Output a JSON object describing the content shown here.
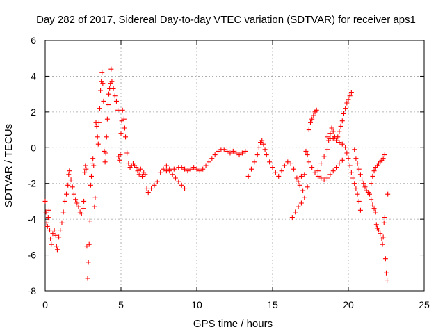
{
  "chart_data": {
    "type": "scatter",
    "title": "Day 282 of 2017, Sidereal Day-to-day VTEC variation (SDTVAR) for receiver aps1",
    "xlabel": "GPS time / hours",
    "ylabel": "SDTVAR / TECUs",
    "xlim": [
      0,
      25
    ],
    "ylim": [
      -8,
      6
    ],
    "xticks": [
      0,
      5,
      10,
      15,
      20,
      25
    ],
    "yticks": [
      -8,
      -6,
      -4,
      -2,
      0,
      2,
      4,
      6
    ],
    "grid": true,
    "marker": "+",
    "color": "#ff0000",
    "series": [
      {
        "name": "aps1",
        "points": [
          [
            0.0,
            -3.0
          ],
          [
            0.05,
            -3.6
          ],
          [
            0.1,
            -4.2
          ],
          [
            0.15,
            -4.4
          ],
          [
            0.2,
            -3.9
          ],
          [
            0.25,
            -3.5
          ],
          [
            0.3,
            -4.6
          ],
          [
            0.35,
            -5.1
          ],
          [
            0.4,
            -5.4
          ],
          [
            0.5,
            -4.8
          ],
          [
            0.6,
            -4.6
          ],
          [
            0.7,
            -4.9
          ],
          [
            0.75,
            -5.5
          ],
          [
            0.8,
            -5.7
          ],
          [
            0.9,
            -5.0
          ],
          [
            1.0,
            -4.6
          ],
          [
            1.1,
            -4.2
          ],
          [
            1.2,
            -3.6
          ],
          [
            1.3,
            -3.0
          ],
          [
            1.4,
            -2.6
          ],
          [
            1.5,
            -2.1
          ],
          [
            1.55,
            -1.5
          ],
          [
            1.6,
            -1.3
          ],
          [
            1.7,
            -1.8
          ],
          [
            1.8,
            -2.2
          ],
          [
            1.9,
            -2.6
          ],
          [
            2.0,
            -2.9
          ],
          [
            2.1,
            -3.1
          ],
          [
            2.2,
            -3.3
          ],
          [
            2.3,
            -3.6
          ],
          [
            2.4,
            -3.7
          ],
          [
            2.5,
            -3.4
          ],
          [
            2.55,
            -3.0
          ],
          [
            2.6,
            -1.4
          ],
          [
            2.65,
            -1.0
          ],
          [
            2.7,
            -1.2
          ],
          [
            2.75,
            -5.5
          ],
          [
            2.8,
            -7.3
          ],
          [
            2.85,
            -6.4
          ],
          [
            2.9,
            -5.4
          ],
          [
            2.95,
            -4.1
          ],
          [
            3.0,
            -2.1
          ],
          [
            3.05,
            -1.6
          ],
          [
            3.1,
            -0.9
          ],
          [
            3.15,
            -0.6
          ],
          [
            3.2,
            -1.0
          ],
          [
            3.25,
            -3.3
          ],
          [
            3.3,
            -2.8
          ],
          [
            3.35,
            1.4
          ],
          [
            3.4,
            1.2
          ],
          [
            3.45,
            0.6
          ],
          [
            3.5,
            0.2
          ],
          [
            3.55,
            1.4
          ],
          [
            3.6,
            2.2
          ],
          [
            3.65,
            3.2
          ],
          [
            3.7,
            3.7
          ],
          [
            3.75,
            4.2
          ],
          [
            3.8,
            3.6
          ],
          [
            3.85,
            2.6
          ],
          [
            3.9,
            -0.2
          ],
          [
            3.95,
            -0.8
          ],
          [
            4.0,
            -0.3
          ],
          [
            4.05,
            0.6
          ],
          [
            4.1,
            1.6
          ],
          [
            4.15,
            2.4
          ],
          [
            4.2,
            3.0
          ],
          [
            4.25,
            3.3
          ],
          [
            4.3,
            3.6
          ],
          [
            4.35,
            4.4
          ],
          [
            4.4,
            3.7
          ],
          [
            4.5,
            3.3
          ],
          [
            4.6,
            2.9
          ],
          [
            4.7,
            2.6
          ],
          [
            4.8,
            2.1
          ],
          [
            4.85,
            -0.5
          ],
          [
            4.9,
            -0.7
          ],
          [
            4.95,
            -0.4
          ],
          [
            5.0,
            0.8
          ],
          [
            5.05,
            1.5
          ],
          [
            5.1,
            2.1
          ],
          [
            5.2,
            1.6
          ],
          [
            5.25,
            1.1
          ],
          [
            5.3,
            0.6
          ],
          [
            5.4,
            -0.3
          ],
          [
            5.5,
            -0.9
          ],
          [
            5.6,
            -1.1
          ],
          [
            5.7,
            -1.0
          ],
          [
            5.8,
            -0.9
          ],
          [
            5.9,
            -1.0
          ],
          [
            6.0,
            -1.1
          ],
          [
            6.1,
            -1.3
          ],
          [
            6.2,
            -1.5
          ],
          [
            6.3,
            -1.2
          ],
          [
            6.4,
            -1.6
          ],
          [
            6.5,
            -1.4
          ],
          [
            6.6,
            -1.5
          ],
          [
            6.7,
            -2.3
          ],
          [
            6.8,
            -2.5
          ],
          [
            7.0,
            -2.3
          ],
          [
            7.2,
            -2.1
          ],
          [
            7.4,
            -1.9
          ],
          [
            7.6,
            -1.4
          ],
          [
            7.8,
            -1.2
          ],
          [
            8.0,
            -1.0
          ],
          [
            8.2,
            -1.2
          ],
          [
            8.4,
            -1.5
          ],
          [
            8.6,
            -1.7
          ],
          [
            8.8,
            -1.9
          ],
          [
            9.0,
            -2.1
          ],
          [
            9.2,
            -2.3
          ],
          [
            8.0,
            -1.3
          ],
          [
            8.2,
            -1.3
          ],
          [
            8.5,
            -1.2
          ],
          [
            8.8,
            -1.1
          ],
          [
            9.0,
            -1.1
          ],
          [
            9.2,
            -1.2
          ],
          [
            9.4,
            -1.3
          ],
          [
            9.6,
            -1.2
          ],
          [
            9.8,
            -1.1
          ],
          [
            10.0,
            -1.2
          ],
          [
            10.2,
            -1.3
          ],
          [
            10.4,
            -1.2
          ],
          [
            10.6,
            -1.0
          ],
          [
            10.8,
            -0.8
          ],
          [
            11.0,
            -0.6
          ],
          [
            11.2,
            -0.4
          ],
          [
            11.4,
            -0.2
          ],
          [
            11.6,
            -0.1
          ],
          [
            11.8,
            -0.1
          ],
          [
            12.0,
            -0.2
          ],
          [
            12.2,
            -0.3
          ],
          [
            12.4,
            -0.2
          ],
          [
            12.6,
            -0.3
          ],
          [
            12.8,
            -0.4
          ],
          [
            13.0,
            -0.3
          ],
          [
            13.2,
            -0.2
          ],
          [
            13.4,
            -1.6
          ],
          [
            13.6,
            -1.2
          ],
          [
            13.8,
            -0.8
          ],
          [
            14.0,
            -0.4
          ],
          [
            14.1,
            0.0
          ],
          [
            14.2,
            0.3
          ],
          [
            14.3,
            0.4
          ],
          [
            14.4,
            0.2
          ],
          [
            14.5,
            -0.1
          ],
          [
            14.6,
            -0.4
          ],
          [
            14.8,
            -0.8
          ],
          [
            15.0,
            -1.1
          ],
          [
            15.2,
            -1.4
          ],
          [
            15.4,
            -1.6
          ],
          [
            15.6,
            -1.3
          ],
          [
            15.8,
            -1.0
          ],
          [
            16.0,
            -0.8
          ],
          [
            16.2,
            -0.9
          ],
          [
            16.4,
            -1.2
          ],
          [
            16.6,
            -1.7
          ],
          [
            16.8,
            -2.1
          ],
          [
            17.0,
            -2.4
          ],
          [
            16.7,
            -1.9
          ],
          [
            16.9,
            -1.6
          ],
          [
            17.1,
            -1.5
          ],
          [
            17.2,
            -0.2
          ],
          [
            17.3,
            -0.4
          ],
          [
            17.4,
            -0.8
          ],
          [
            17.6,
            -1.1
          ],
          [
            17.8,
            -1.4
          ],
          [
            18.0,
            -1.6
          ],
          [
            18.2,
            -1.7
          ],
          [
            18.4,
            -1.8
          ],
          [
            18.6,
            -1.7
          ],
          [
            18.8,
            -1.5
          ],
          [
            19.0,
            -1.3
          ],
          [
            19.2,
            -1.1
          ],
          [
            19.4,
            -0.9
          ],
          [
            19.6,
            -0.7
          ],
          [
            16.3,
            -3.9
          ],
          [
            16.5,
            -3.6
          ],
          [
            16.7,
            -3.3
          ],
          [
            16.9,
            -3.1
          ],
          [
            17.1,
            -2.8
          ],
          [
            17.3,
            -2.2
          ],
          [
            17.4,
            1.0
          ],
          [
            17.5,
            1.4
          ],
          [
            17.6,
            1.6
          ],
          [
            17.7,
            1.8
          ],
          [
            17.8,
            2.0
          ],
          [
            17.9,
            2.1
          ],
          [
            18.0,
            -1.3
          ],
          [
            18.2,
            -0.9
          ],
          [
            18.4,
            -0.5
          ],
          [
            18.6,
            -0.1
          ],
          [
            18.7,
            0.4
          ],
          [
            18.8,
            0.8
          ],
          [
            18.9,
            1.1
          ],
          [
            19.0,
            0.9
          ],
          [
            19.1,
            0.6
          ],
          [
            19.2,
            0.4
          ],
          [
            19.3,
            0.6
          ],
          [
            19.4,
            0.9
          ],
          [
            19.5,
            1.2
          ],
          [
            19.6,
            1.5
          ],
          [
            19.7,
            1.9
          ],
          [
            19.8,
            2.2
          ],
          [
            19.9,
            2.5
          ],
          [
            20.0,
            2.7
          ],
          [
            20.1,
            2.9
          ],
          [
            20.2,
            3.1
          ],
          [
            18.6,
            0.6
          ],
          [
            18.8,
            0.5
          ],
          [
            19.0,
            0.5
          ],
          [
            19.2,
            0.4
          ],
          [
            19.4,
            0.3
          ],
          [
            19.6,
            0.2
          ],
          [
            19.8,
            0.0
          ],
          [
            19.9,
            -0.3
          ],
          [
            20.0,
            -0.6
          ],
          [
            20.1,
            -1.0
          ],
          [
            20.2,
            -1.4
          ],
          [
            20.3,
            -1.7
          ],
          [
            20.4,
            -2.0
          ],
          [
            20.5,
            -2.3
          ],
          [
            20.6,
            -2.6
          ],
          [
            20.7,
            -3.0
          ],
          [
            20.8,
            -3.5
          ],
          [
            20.4,
            -0.1
          ],
          [
            20.5,
            -0.6
          ],
          [
            20.6,
            -0.9
          ],
          [
            20.7,
            -1.2
          ],
          [
            20.8,
            -1.5
          ],
          [
            20.9,
            -1.8
          ],
          [
            21.0,
            -2.0
          ],
          [
            21.1,
            -2.2
          ],
          [
            21.2,
            -2.4
          ],
          [
            21.3,
            -2.5
          ],
          [
            21.4,
            -2.6
          ],
          [
            21.5,
            -2.9
          ],
          [
            21.6,
            -3.2
          ],
          [
            21.7,
            -3.4
          ],
          [
            21.8,
            -3.6
          ],
          [
            21.5,
            -2.0
          ],
          [
            21.6,
            -1.6
          ],
          [
            21.7,
            -1.3
          ],
          [
            21.8,
            -1.1
          ],
          [
            21.9,
            -1.0
          ],
          [
            22.0,
            -0.9
          ],
          [
            22.1,
            -0.8
          ],
          [
            22.2,
            -0.7
          ],
          [
            22.3,
            -0.6
          ],
          [
            22.4,
            -0.4
          ],
          [
            21.85,
            -4.3
          ],
          [
            21.9,
            -4.5
          ],
          [
            22.0,
            -4.6
          ],
          [
            22.1,
            -4.8
          ],
          [
            22.2,
            -5.1
          ],
          [
            22.25,
            -5.4
          ],
          [
            22.3,
            -5.0
          ],
          [
            22.35,
            -4.2
          ],
          [
            22.4,
            -3.9
          ],
          [
            22.45,
            -6.2
          ],
          [
            22.5,
            -7.0
          ],
          [
            22.55,
            -7.4
          ],
          [
            22.6,
            -2.6
          ]
        ]
      }
    ]
  }
}
